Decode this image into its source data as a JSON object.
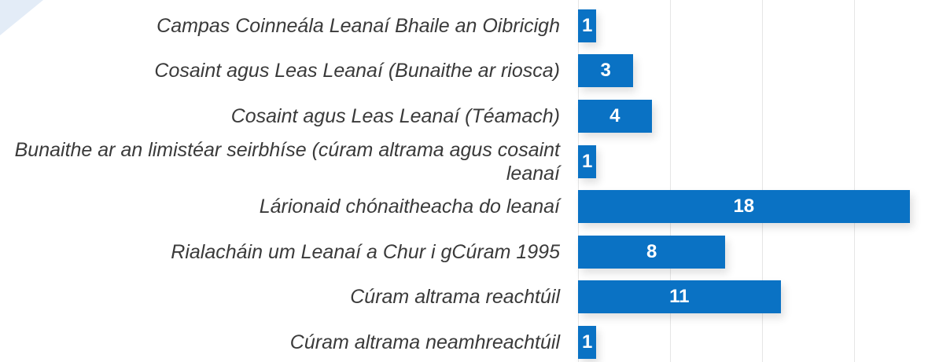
{
  "chart_data": {
    "type": "bar",
    "orientation": "horizontal",
    "categories": [
      "Campas Coinneála Leanaí Bhaile an Oibricigh",
      "Cosaint agus Leas Leanaí (Bunaithe ar riosca)",
      "Cosaint agus Leas Leanaí (Téamach)",
      "Bunaithe ar an limistéar seirbhíse (cúram altrama agus cosaint leanaí",
      "Lárionaid chónaitheacha do leanaí",
      "Rialacháin um Leanaí a Chur i gCúram 1995",
      "Cúram altrama reachtúil",
      "Cúram altrama neamhreachtúil"
    ],
    "values": [
      1,
      3,
      4,
      1,
      18,
      8,
      11,
      1
    ],
    "color": "#0a72c4",
    "xlim": [
      0,
      19
    ],
    "xticks": [
      0,
      5,
      10,
      15
    ],
    "tick_labels": false,
    "grid": true
  }
}
